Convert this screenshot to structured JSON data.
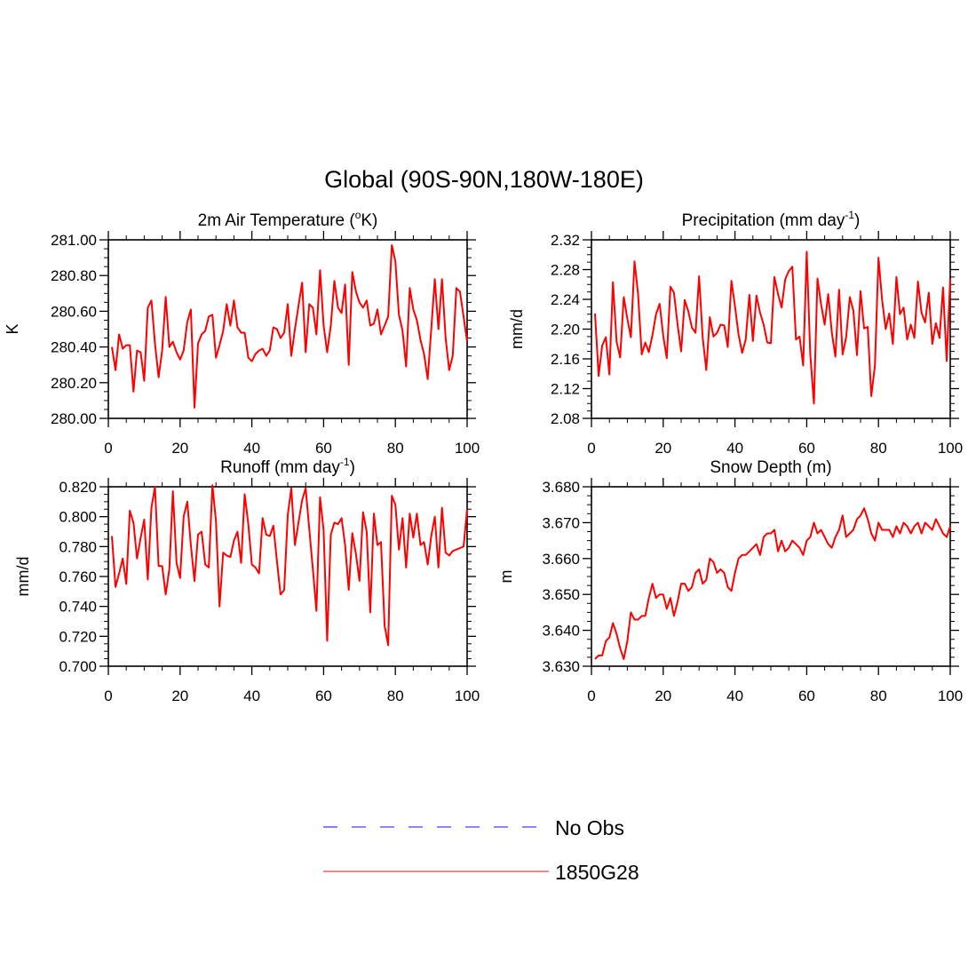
{
  "title": "Global (90S-90N,180W-180E)",
  "colors": {
    "model": "#ff0000",
    "model_legend": "#f06060",
    "obs": "#6060ff",
    "axis": "#000000"
  },
  "legend": [
    {
      "label": "No Obs",
      "style": "dashed",
      "color": "#6060ff"
    },
    {
      "label": "1850G28",
      "style": "solid",
      "color": "#f06060"
    }
  ],
  "chart_data": [
    {
      "type": "line",
      "title": "2m Air Temperature (°K)",
      "title_main": "2m Air Temperature (",
      "title_sup": "o",
      "title_end": "K)",
      "xlabel": "",
      "ylabel": "K",
      "xlim": [
        0,
        100
      ],
      "ylim": [
        280.0,
        281.0
      ],
      "xticks": [
        0,
        20,
        40,
        60,
        80,
        100
      ],
      "xtick_labels": [
        "0",
        "20",
        "40",
        "60",
        "80",
        "100"
      ],
      "yticks": [
        280.0,
        280.2,
        280.4,
        280.6,
        280.8,
        281.0
      ],
      "ytick_labels": [
        "280.00",
        "280.20",
        "280.40",
        "280.60",
        "280.80",
        "281.00"
      ],
      "yminor_step": 0.05,
      "series": [
        {
          "name": "1850G28",
          "x_start": 1,
          "values": [
            280.4,
            280.27,
            280.47,
            280.39,
            280.41,
            280.41,
            280.15,
            280.38,
            280.37,
            280.21,
            280.62,
            280.66,
            280.42,
            280.23,
            280.38,
            280.68,
            280.4,
            280.43,
            280.37,
            280.33,
            280.38,
            280.54,
            280.61,
            280.06,
            280.42,
            280.47,
            280.49,
            280.57,
            280.58,
            280.34,
            280.41,
            280.49,
            280.64,
            280.52,
            280.66,
            280.51,
            280.48,
            280.48,
            280.34,
            280.32,
            280.36,
            280.38,
            280.39,
            280.35,
            280.38,
            280.51,
            280.5,
            280.45,
            280.48,
            280.64,
            280.35,
            280.5,
            280.63,
            280.76,
            280.37,
            280.64,
            280.62,
            280.47,
            280.83,
            280.52,
            280.37,
            280.52,
            280.77,
            280.62,
            280.59,
            280.75,
            280.3,
            280.82,
            280.71,
            280.65,
            280.62,
            280.66,
            280.52,
            280.53,
            280.61,
            280.47,
            280.52,
            280.57,
            280.97,
            280.88,
            280.58,
            280.49,
            280.29,
            280.73,
            280.61,
            280.55,
            280.44,
            280.36,
            280.22,
            280.5,
            280.78,
            280.5,
            280.78,
            280.45,
            280.27,
            280.35,
            280.73,
            280.71,
            280.57,
            280.43
          ]
        }
      ]
    },
    {
      "type": "line",
      "title": "Precipitation (mm day-1)",
      "title_main": "Precipitation (mm day",
      "title_sup": "-1",
      "title_end": ")",
      "xlabel": "",
      "ylabel": "mm/d",
      "xlim": [
        0,
        100
      ],
      "ylim": [
        2.08,
        2.32
      ],
      "xticks": [
        0,
        20,
        40,
        60,
        80,
        100
      ],
      "xtick_labels": [
        "0",
        "20",
        "40",
        "60",
        "80",
        "100"
      ],
      "yticks": [
        2.08,
        2.12,
        2.16,
        2.2,
        2.24,
        2.28,
        2.32
      ],
      "ytick_labels": [
        "2.08",
        "2.12",
        "2.16",
        "2.20",
        "2.24",
        "2.28",
        "2.32"
      ],
      "yminor_step": 0.01,
      "series": [
        {
          "name": "1850G28",
          "x_start": 1,
          "values": [
            2.221,
            2.137,
            2.178,
            2.189,
            2.139,
            2.263,
            2.183,
            2.162,
            2.243,
            2.214,
            2.189,
            2.291,
            2.247,
            2.166,
            2.182,
            2.169,
            2.192,
            2.22,
            2.234,
            2.191,
            2.161,
            2.257,
            2.249,
            2.206,
            2.17,
            2.239,
            2.224,
            2.202,
            2.195,
            2.271,
            2.189,
            2.145,
            2.216,
            2.19,
            2.195,
            2.206,
            2.205,
            2.176,
            2.265,
            2.231,
            2.193,
            2.168,
            2.186,
            2.246,
            2.184,
            2.245,
            2.222,
            2.206,
            2.182,
            2.181,
            2.27,
            2.247,
            2.229,
            2.267,
            2.278,
            2.284,
            2.186,
            2.19,
            2.151,
            2.304,
            2.166,
            2.1,
            2.268,
            2.233,
            2.206,
            2.247,
            2.195,
            2.163,
            2.253,
            2.166,
            2.189,
            2.243,
            2.225,
            2.165,
            2.251,
            2.201,
            2.203,
            2.11,
            2.151,
            2.296,
            2.24,
            2.2,
            2.221,
            2.18,
            2.27,
            2.22,
            2.229,
            2.186,
            2.206,
            2.188,
            2.264,
            2.222,
            2.209,
            2.249,
            2.18,
            2.208,
            2.188,
            2.256,
            2.157,
            2.268
          ]
        }
      ]
    },
    {
      "type": "line",
      "title": "Runoff (mm day-1)",
      "title_main": "Runoff (mm day",
      "title_sup": "-1",
      "title_end": ")",
      "xlabel": "",
      "ylabel": "mm/d",
      "xlim": [
        0,
        100
      ],
      "ylim": [
        0.7,
        0.82
      ],
      "xticks": [
        0,
        20,
        40,
        60,
        80,
        100
      ],
      "xtick_labels": [
        "0",
        "20",
        "40",
        "60",
        "80",
        "100"
      ],
      "yticks": [
        0.7,
        0.72,
        0.74,
        0.76,
        0.78,
        0.8,
        0.82
      ],
      "ytick_labels": [
        "0.700",
        "0.720",
        "0.740",
        "0.760",
        "0.780",
        "0.800",
        "0.820"
      ],
      "yminor_step": 0.005,
      "series": [
        {
          "name": "1850G28",
          "x_start": 1,
          "values": [
            0.787,
            0.753,
            0.762,
            0.772,
            0.755,
            0.804,
            0.796,
            0.772,
            0.786,
            0.798,
            0.758,
            0.806,
            0.82,
            0.767,
            0.767,
            0.748,
            0.765,
            0.817,
            0.769,
            0.759,
            0.8,
            0.81,
            0.781,
            0.757,
            0.788,
            0.79,
            0.768,
            0.766,
            0.821,
            0.797,
            0.74,
            0.776,
            0.774,
            0.773,
            0.784,
            0.79,
            0.769,
            0.815,
            0.795,
            0.768,
            0.766,
            0.762,
            0.799,
            0.788,
            0.787,
            0.794,
            0.77,
            0.748,
            0.751,
            0.801,
            0.819,
            0.781,
            0.796,
            0.811,
            0.819,
            0.792,
            0.765,
            0.737,
            0.813,
            0.791,
            0.717,
            0.788,
            0.796,
            0.795,
            0.799,
            0.781,
            0.751,
            0.789,
            0.775,
            0.757,
            0.803,
            0.79,
            0.736,
            0.802,
            0.781,
            0.783,
            0.727,
            0.714,
            0.814,
            0.808,
            0.778,
            0.799,
            0.766,
            0.802,
            0.786,
            0.802,
            0.781,
            0.783,
            0.768,
            0.787,
            0.8,
            0.766,
            0.806,
            0.776,
            0.774,
            0.777,
            0.778,
            0.779,
            0.78,
            0.805
          ]
        }
      ]
    },
    {
      "type": "line",
      "title": "Snow Depth (m)",
      "title_main": "Snow Depth (m)",
      "title_sup": "",
      "title_end": "",
      "xlabel": "",
      "ylabel": "m",
      "xlim": [
        0,
        100
      ],
      "ylim": [
        3.63,
        3.68
      ],
      "xticks": [
        0,
        20,
        40,
        60,
        80,
        100
      ],
      "xtick_labels": [
        "0",
        "20",
        "40",
        "60",
        "80",
        "100"
      ],
      "yticks": [
        3.63,
        3.64,
        3.65,
        3.66,
        3.67,
        3.68
      ],
      "ytick_labels": [
        "3.630",
        "3.640",
        "3.650",
        "3.660",
        "3.670",
        "3.680"
      ],
      "yminor_step": 0.0025,
      "series": [
        {
          "name": "1850G28",
          "x_start": 1,
          "values": [
            3.632,
            3.633,
            3.633,
            3.637,
            3.638,
            3.642,
            3.639,
            3.635,
            3.632,
            3.637,
            3.645,
            3.643,
            3.643,
            3.644,
            3.644,
            3.649,
            3.653,
            3.649,
            3.65,
            3.65,
            3.646,
            3.649,
            3.644,
            3.648,
            3.653,
            3.653,
            3.651,
            3.652,
            3.656,
            3.657,
            3.653,
            3.654,
            3.66,
            3.659,
            3.656,
            3.657,
            3.656,
            3.652,
            3.651,
            3.656,
            3.66,
            3.661,
            3.661,
            3.662,
            3.663,
            3.664,
            3.661,
            3.666,
            3.667,
            3.667,
            3.668,
            3.662,
            3.665,
            3.662,
            3.663,
            3.665,
            3.664,
            3.663,
            3.661,
            3.665,
            3.666,
            3.67,
            3.667,
            3.668,
            3.666,
            3.664,
            3.663,
            3.666,
            3.668,
            3.672,
            3.666,
            3.667,
            3.668,
            3.671,
            3.672,
            3.674,
            3.671,
            3.667,
            3.665,
            3.67,
            3.668,
            3.668,
            3.668,
            3.666,
            3.669,
            3.667,
            3.67,
            3.669,
            3.667,
            3.669,
            3.67,
            3.667,
            3.67,
            3.669,
            3.668,
            3.671,
            3.669,
            3.667,
            3.666,
            3.669
          ]
        }
      ]
    }
  ]
}
